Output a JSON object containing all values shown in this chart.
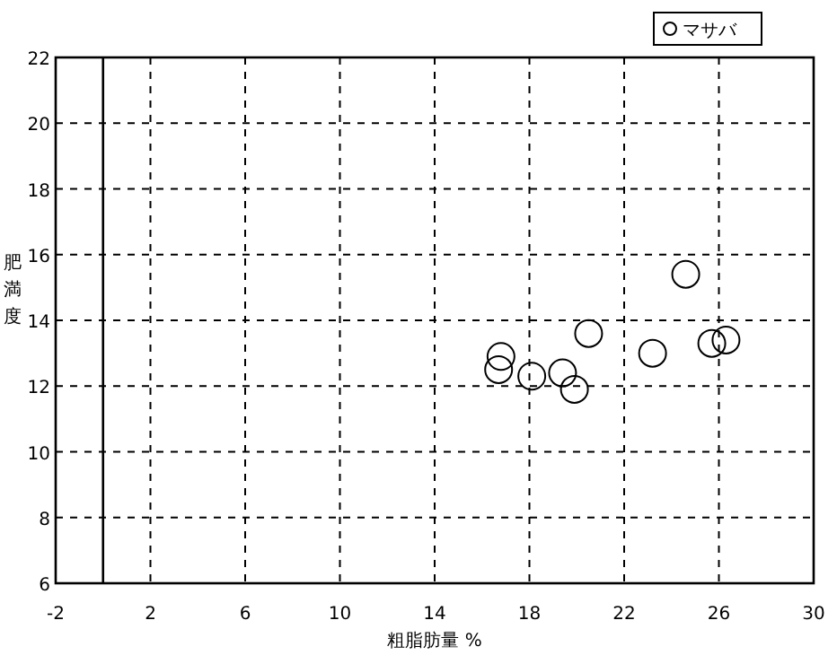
{
  "chart_data": {
    "type": "scatter",
    "xlabel": "粗脂肪量 %",
    "ylabel": "肥満度",
    "xlim": [
      -2,
      30
    ],
    "xticks": [
      -2,
      2,
      6,
      10,
      14,
      18,
      22,
      26,
      30
    ],
    "ylim": [
      6,
      22
    ],
    "yticks": [
      6,
      8,
      10,
      12,
      14,
      16,
      18,
      20,
      22
    ],
    "grid": true,
    "legend": "top right",
    "marker": "circle",
    "ref_lines": [
      {
        "axis": "x",
        "value": 0,
        "color": "#000000"
      }
    ],
    "series": [
      {
        "name": "マサバ",
        "color": "#000000",
        "x": [
          16.8,
          16.7,
          18.1,
          19.4,
          19.9,
          20.5,
          23.2,
          24.6,
          25.7,
          26.3
        ],
        "values": [
          12.9,
          12.5,
          12.3,
          12.4,
          11.9,
          13.6,
          13.0,
          15.4,
          13.3,
          13.4
        ]
      }
    ]
  }
}
